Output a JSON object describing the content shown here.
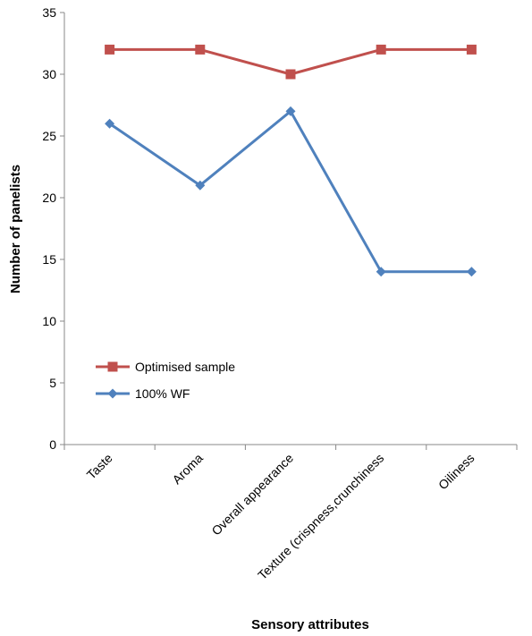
{
  "chart_data": {
    "type": "line",
    "categories": [
      "Taste",
      "Aroma",
      "Overall appearance",
      "Texture (crispness,crunchiness",
      "Oiliness"
    ],
    "series": [
      {
        "name": "Optimised sample",
        "values": [
          32,
          32,
          30,
          32,
          32
        ],
        "color": "#c0504d",
        "marker": "square"
      },
      {
        "name": "100% WF",
        "values": [
          26,
          21,
          27,
          14,
          14
        ],
        "color": "#4f81bd",
        "marker": "diamond"
      }
    ],
    "xlabel": "Sensory attributes",
    "ylabel": "Number of panelists",
    "ylim": [
      0,
      35
    ],
    "yticks": [
      0,
      5,
      10,
      15,
      20,
      25,
      30,
      35
    ],
    "grid": false,
    "legend_position": "lower-left inside plot"
  }
}
